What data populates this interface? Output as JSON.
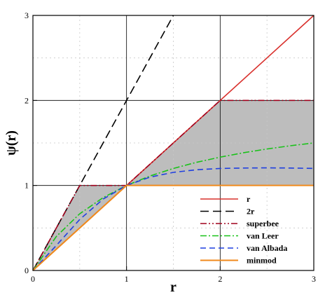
{
  "chart_data": {
    "type": "line",
    "xlabel": "r",
    "ylabel": "ψ(r)",
    "xlim": [
      0,
      3
    ],
    "ylim": [
      0,
      3
    ],
    "x_ticks": [
      "0",
      "1",
      "2",
      "3"
    ],
    "y_ticks": [
      "0",
      "1",
      "2",
      "3"
    ],
    "grid": "major lines at 1 and 2, dashed minor lines at 0.5 intervals",
    "legend_position": "bottom-right",
    "shaded_region": {
      "description": "TVD region between minmod and superbee",
      "color": "#bdbdbd"
    },
    "series": [
      {
        "name": "r",
        "color": "#d9302c",
        "dash": "solid",
        "x": [
          0,
          3
        ],
        "y": [
          0,
          3
        ]
      },
      {
        "name": "2r",
        "color": "#000000",
        "dash": "longdash",
        "x": [
          0,
          1.5
        ],
        "y": [
          0,
          3
        ]
      },
      {
        "name": "superbee",
        "color": "#a0001c",
        "dash": "dashdotdot",
        "x": [
          0,
          0.5,
          1,
          2,
          3
        ],
        "y": [
          0,
          1,
          1,
          2,
          2
        ]
      },
      {
        "name": "van Leer",
        "color": "#19c219",
        "dash": "dashdot",
        "x": [
          0,
          0.25,
          0.5,
          0.75,
          1,
          1.25,
          1.5,
          1.75,
          2,
          2.25,
          2.5,
          2.75,
          3
        ],
        "y": [
          0,
          0.4,
          0.667,
          0.857,
          1,
          1.111,
          1.2,
          1.273,
          1.333,
          1.385,
          1.429,
          1.467,
          1.5
        ]
      },
      {
        "name": "van Albada",
        "color": "#1f3fe0",
        "dash": "dash",
        "x": [
          0,
          0.25,
          0.5,
          0.75,
          1,
          1.25,
          1.5,
          1.75,
          2,
          2.25,
          2.5,
          2.75,
          3
        ],
        "y": [
          0,
          0.294,
          0.6,
          0.84,
          1,
          1.098,
          1.154,
          1.185,
          1.2,
          1.205,
          1.207,
          1.205,
          1.2
        ]
      },
      {
        "name": "minmod",
        "color": "#f08a1c",
        "dash": "solid",
        "x": [
          0,
          1,
          3
        ],
        "y": [
          0,
          1,
          1
        ]
      }
    ]
  }
}
